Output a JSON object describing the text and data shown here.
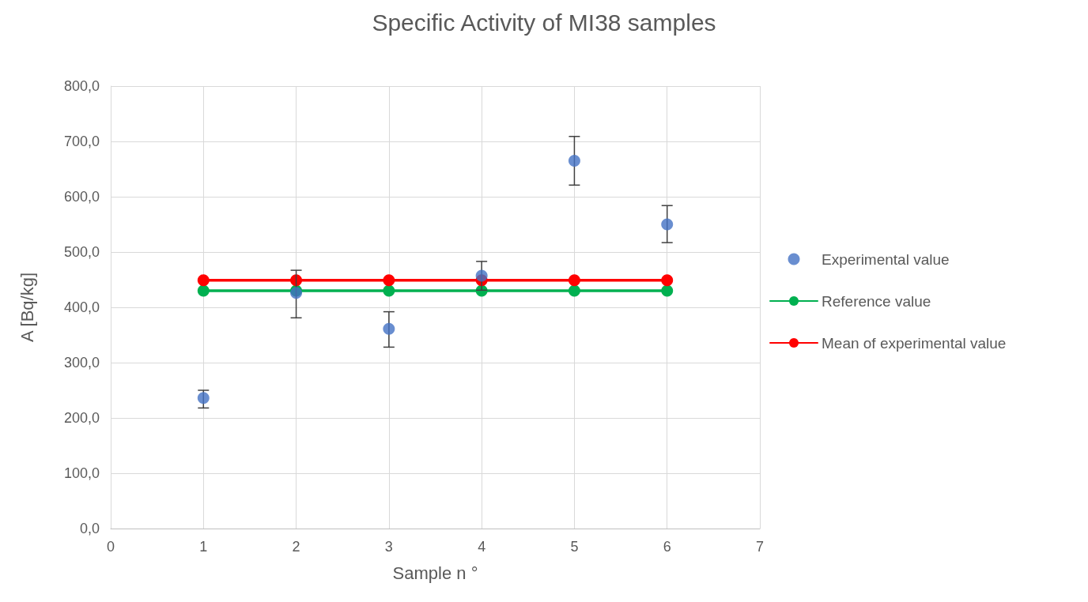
{
  "chart_data": {
    "type": "scatter",
    "title": "Specific Activity of MI38 samples",
    "xlabel": "Sample n °",
    "ylabel": "A [Bq/kg]",
    "x": [
      1,
      2,
      3,
      4,
      5,
      6
    ],
    "series": [
      {
        "name": "Experimental value",
        "color": "#4472c4",
        "values": [
          236,
          426,
          361,
          457,
          665,
          550
        ],
        "errors": [
          [
            218,
            250
          ],
          [
            381,
            467
          ],
          [
            328,
            392
          ],
          26,
          [
            621,
            709
          ],
          [
            517,
            584
          ]
        ]
      },
      {
        "name": "Reference value",
        "type": "line",
        "color": "#00b050",
        "values": [
          430,
          430,
          430,
          430,
          430,
          430
        ]
      },
      {
        "name": "Mean of experimental value",
        "type": "line",
        "color": "#ff0000",
        "values": [
          449,
          449,
          449,
          449,
          449,
          449
        ]
      }
    ],
    "xlim": [
      0,
      7
    ],
    "xticks": [
      0,
      1,
      2,
      3,
      4,
      5,
      6,
      7
    ],
    "ylim": [
      0,
      800
    ],
    "yticks": [
      {
        "value": 0,
        "label": "0,0"
      },
      {
        "value": 100,
        "label": "100,0"
      },
      {
        "value": 200,
        "label": "200,0"
      },
      {
        "value": 300,
        "label": "300,0"
      },
      {
        "value": 400,
        "label": "400,0"
      },
      {
        "value": 500,
        "label": "500,0"
      },
      {
        "value": 600,
        "label": "600,0"
      },
      {
        "value": 700,
        "label": "700,0"
      },
      {
        "value": 800,
        "label": "800,0"
      }
    ],
    "grid": true,
    "legend": "right",
    "marker": "circle",
    "line_style": "solid"
  }
}
